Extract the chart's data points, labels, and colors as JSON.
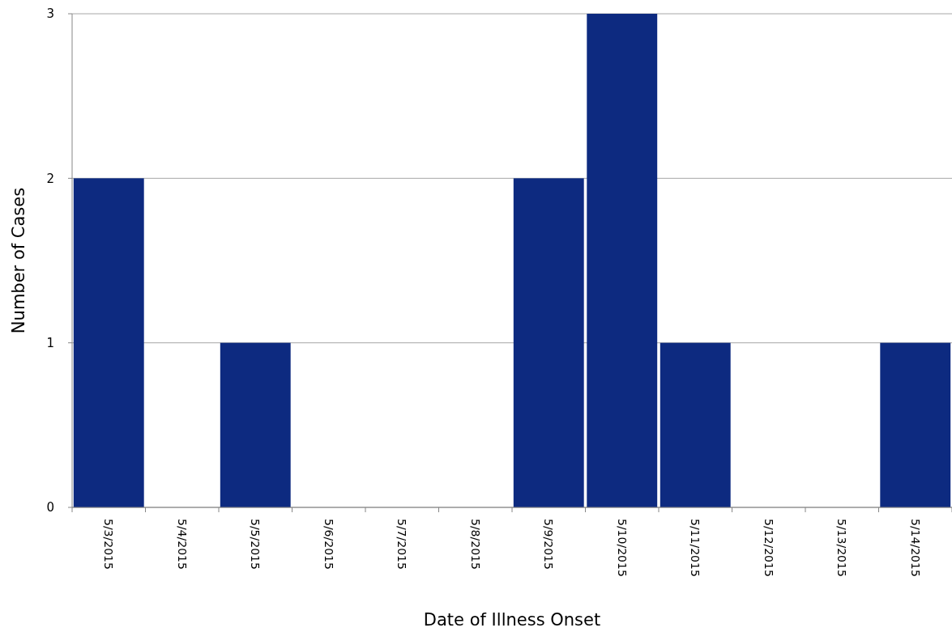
{
  "chart_data": {
    "type": "bar",
    "xlabel": "Date of Illness Onset",
    "ylabel": "Number of Cases",
    "categories": [
      "5/3/2015",
      "5/4/2015",
      "5/5/2015",
      "5/6/2015",
      "5/7/2015",
      "5/8/2015",
      "5/9/2015",
      "5/10/2015",
      "5/11/2015",
      "5/12/2015",
      "5/13/2015",
      "5/14/2015"
    ],
    "values": [
      2,
      0,
      1,
      0,
      0,
      0,
      2,
      3,
      1,
      0,
      0,
      1
    ],
    "color": "#0d2a80",
    "ylim": [
      0,
      3
    ],
    "yticks": [
      0,
      1,
      2,
      3
    ],
    "grid": "y"
  }
}
